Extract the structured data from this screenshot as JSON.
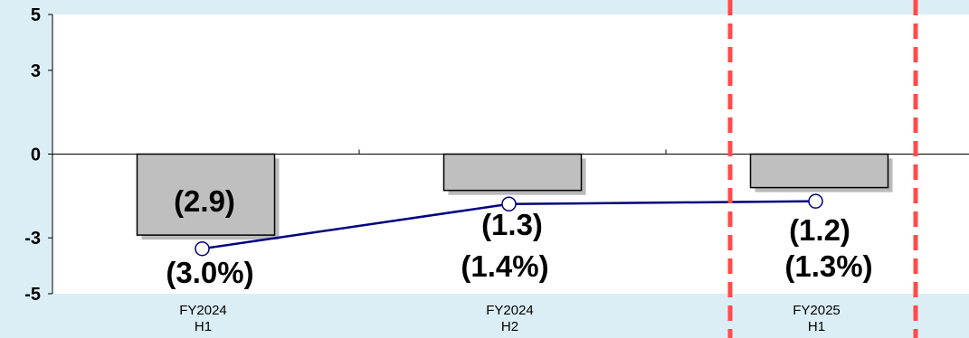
{
  "chart_data": {
    "type": "bar",
    "categories": [
      [
        "FY2024",
        "H1"
      ],
      [
        "FY2024",
        "H2"
      ],
      [
        "FY2025",
        "H1"
      ]
    ],
    "ylim": [
      -5,
      5
    ],
    "y_ticks": [
      {
        "value": 5,
        "label": "5"
      },
      {
        "value": 3,
        "label": "3"
      },
      {
        "value": 0,
        "label": "0"
      },
      {
        "value": -3,
        "label": "-3"
      },
      {
        "value": -5,
        "label": "-5"
      }
    ],
    "series": [
      {
        "type": "bar",
        "values": [
          -2.9,
          -1.3,
          -1.2
        ],
        "labels": [
          "(2.9)",
          "(1.3)",
          "(1.2)"
        ],
        "color": "#bfbfbf"
      },
      {
        "type": "line",
        "values": [
          -3.0,
          -1.4,
          -1.3
        ],
        "labels": [
          "(3.0%)",
          "(1.4%)",
          "(1.3%)"
        ],
        "color": "#000080"
      }
    ],
    "dashed_lines_color": "#ff4b4b",
    "grid": false,
    "legend": "none"
  }
}
